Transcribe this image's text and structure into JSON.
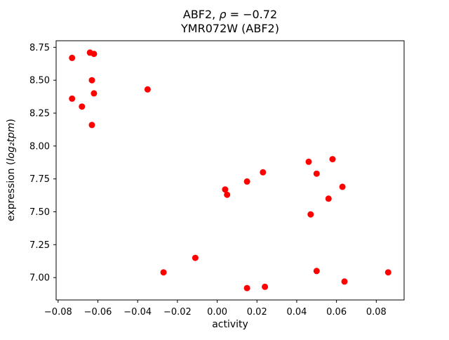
{
  "chart_data": {
    "type": "scatter",
    "title_line1": {
      "pre": "ABF2, ",
      "math": "ρ",
      "post": " = −0.72"
    },
    "title_line2": "YMR072W (ABF2)",
    "xlabel": "activity",
    "ylabel": {
      "pre": "expression (",
      "math": "log₂tpm",
      "post": ")"
    },
    "xlim": [
      -0.081,
      0.094
    ],
    "ylim": [
      6.83,
      8.8
    ],
    "xticks": [
      -0.08,
      -0.06,
      -0.04,
      -0.02,
      0.0,
      0.02,
      0.04,
      0.06,
      0.08
    ],
    "yticks": [
      7.0,
      7.25,
      7.5,
      7.75,
      8.0,
      8.25,
      8.5,
      8.75
    ],
    "marker_color": "#ff0000",
    "marker_radius": 4.5,
    "legend": "none",
    "grid": false,
    "points": [
      [
        -0.073,
        8.67
      ],
      [
        -0.064,
        8.71
      ],
      [
        -0.062,
        8.7
      ],
      [
        -0.073,
        8.36
      ],
      [
        -0.068,
        8.3
      ],
      [
        -0.063,
        8.5
      ],
      [
        -0.062,
        8.4
      ],
      [
        -0.063,
        8.16
      ],
      [
        -0.035,
        8.43
      ],
      [
        -0.027,
        7.04
      ],
      [
        -0.011,
        7.15
      ],
      [
        0.004,
        7.67
      ],
      [
        0.005,
        7.63
      ],
      [
        0.015,
        7.73
      ],
      [
        0.015,
        6.92
      ],
      [
        0.023,
        7.8
      ],
      [
        0.024,
        6.93
      ],
      [
        0.046,
        7.88
      ],
      [
        0.047,
        7.48
      ],
      [
        0.05,
        7.79
      ],
      [
        0.05,
        7.05
      ],
      [
        0.056,
        7.6
      ],
      [
        0.058,
        7.9
      ],
      [
        0.063,
        7.69
      ],
      [
        0.064,
        6.97
      ],
      [
        0.086,
        7.04
      ]
    ]
  }
}
